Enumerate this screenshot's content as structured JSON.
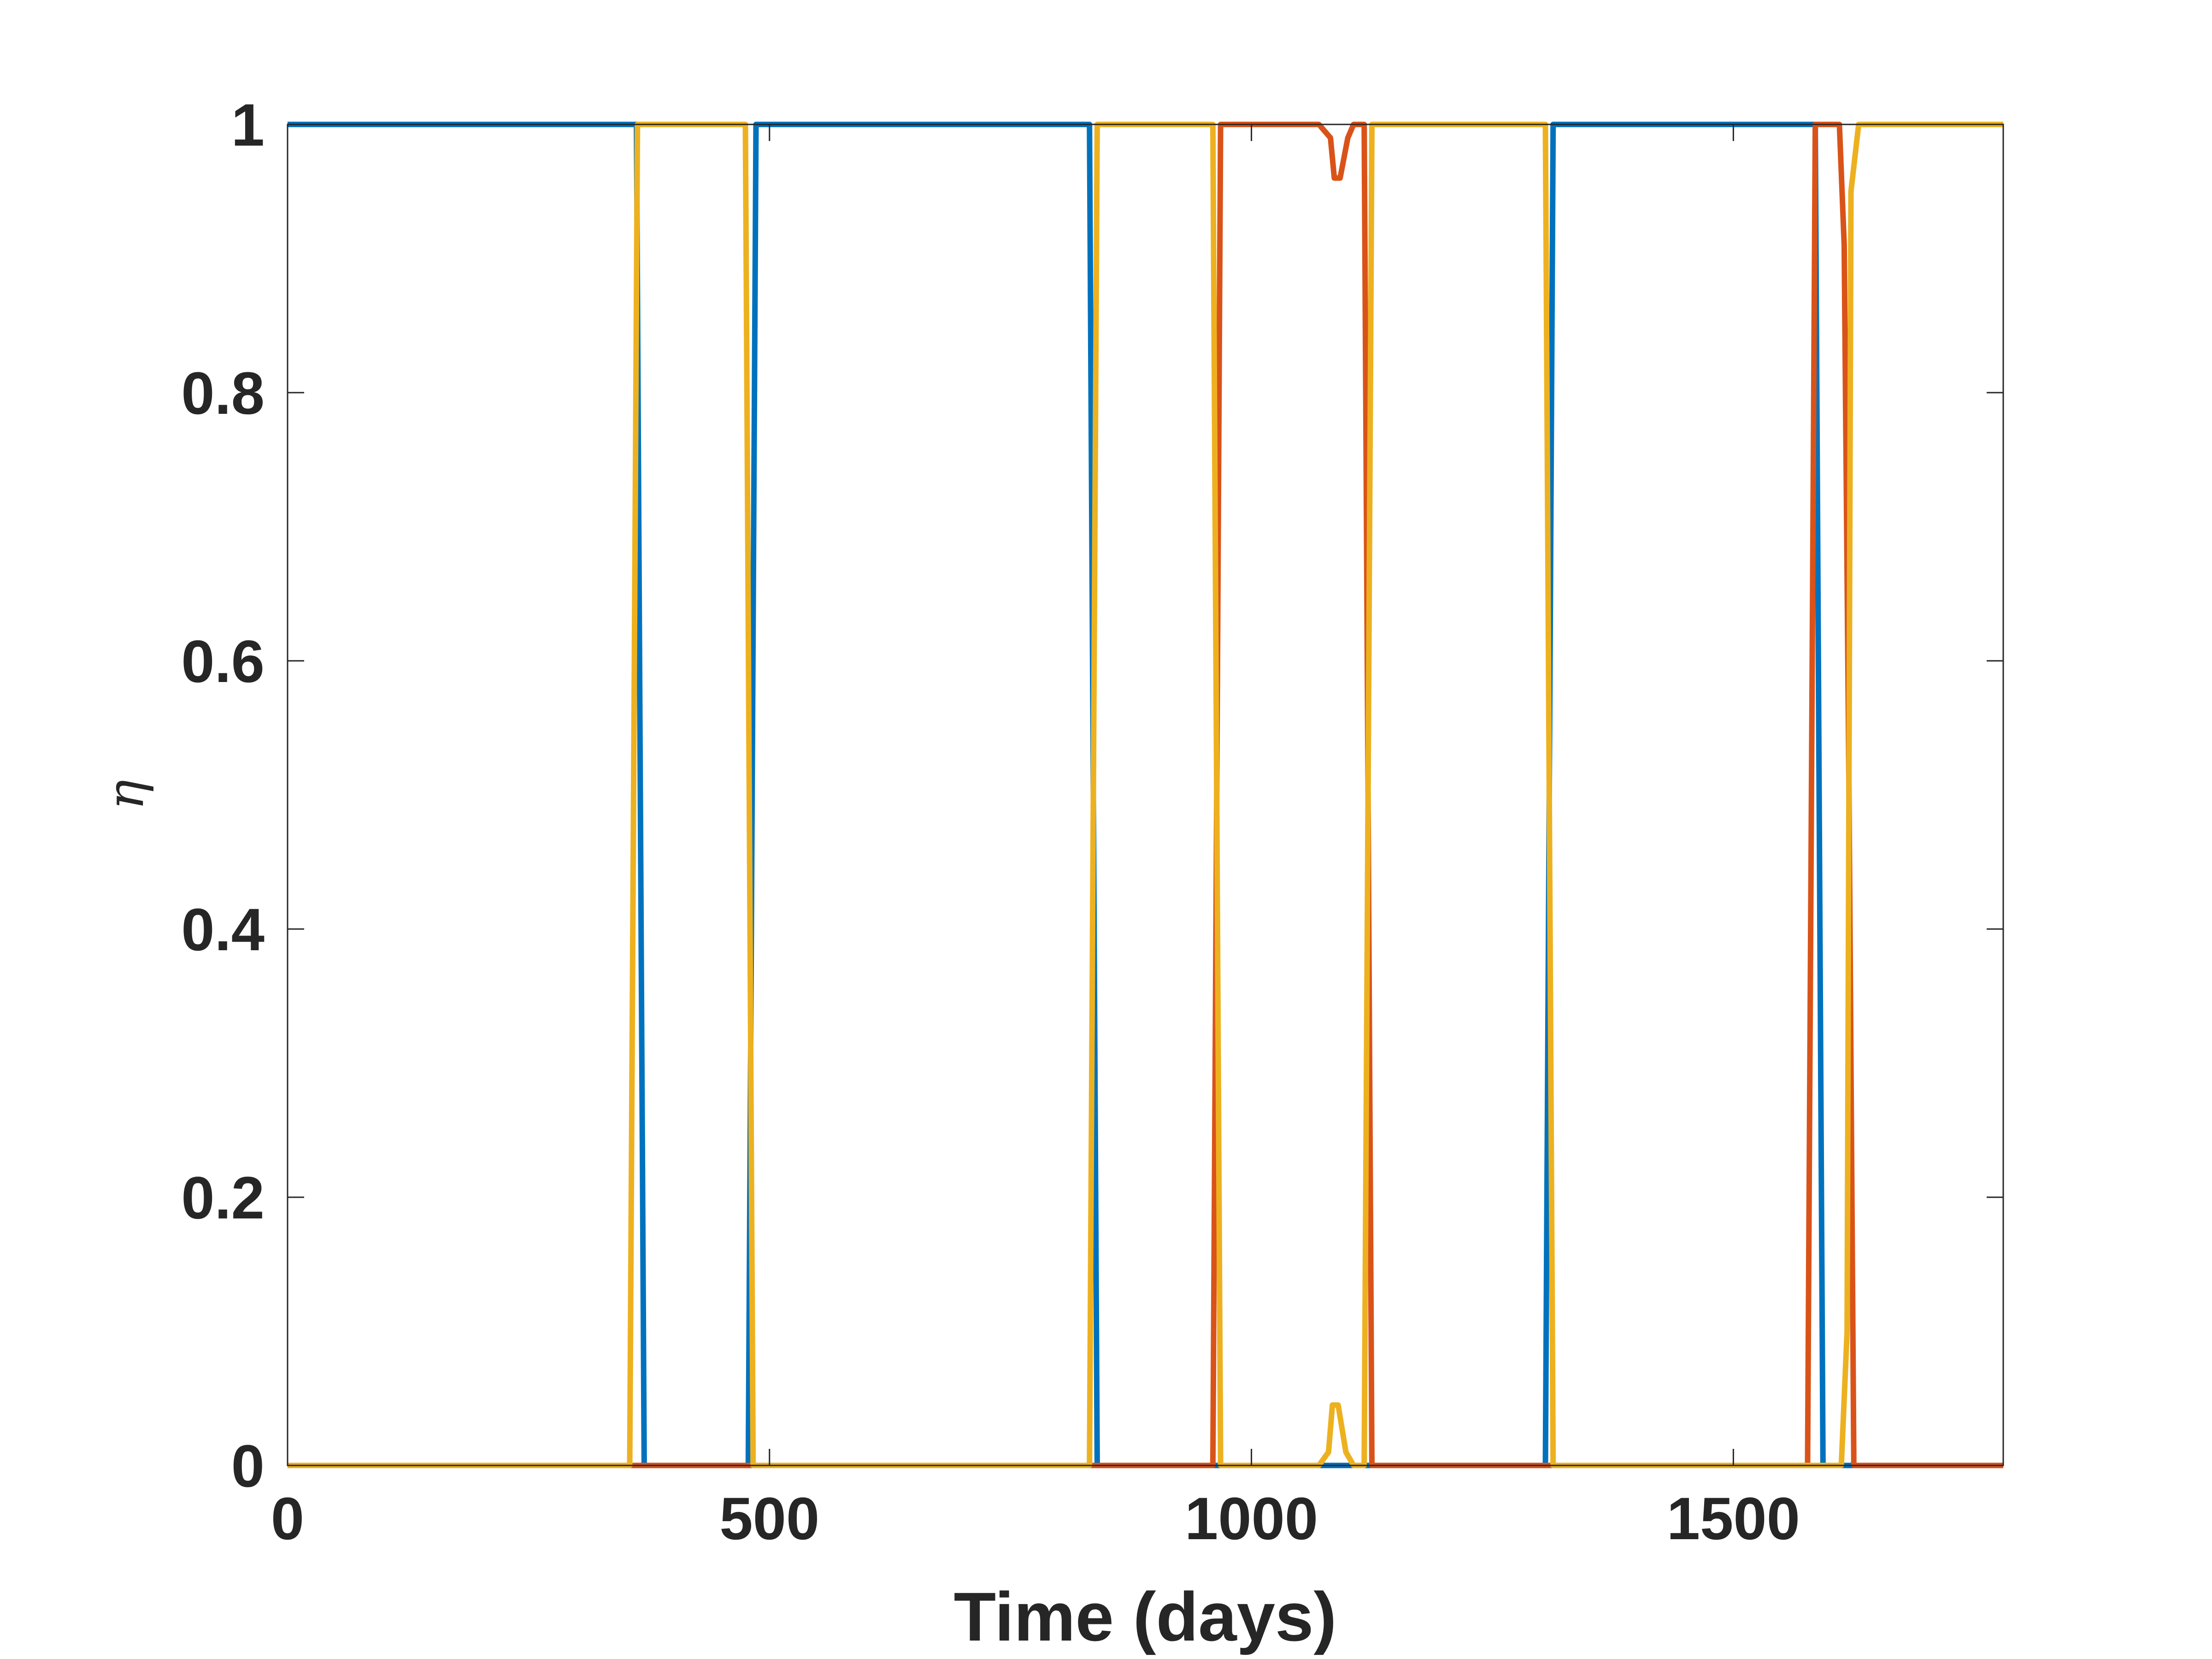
{
  "chart_data": {
    "type": "line",
    "xlabel": "Time (days)",
    "ylabel": "η",
    "xlim": [
      0,
      1780
    ],
    "ylim": [
      0,
      1
    ],
    "xticks": [
      0,
      500,
      1000,
      1500
    ],
    "xtick_labels": [
      "0",
      "500",
      "1000",
      "1500"
    ],
    "yticks": [
      0,
      0.2,
      0.4,
      0.6,
      0.8,
      1
    ],
    "ytick_labels": [
      "0",
      "0.2",
      "0.4",
      "0.6",
      "0.8",
      "1"
    ],
    "grid": false,
    "series": [
      {
        "color": "#0072BD",
        "x": [
          0,
          362,
          370,
          478,
          486,
          832,
          840,
          1305,
          1313,
          1585,
          1593,
          1625,
          1633,
          1780
        ],
        "y": [
          1,
          1,
          0,
          0,
          1,
          1,
          0,
          0,
          1,
          1,
          0,
          0,
          0,
          0
        ]
      },
      {
        "color": "#D95319",
        "x": [
          0,
          960,
          968,
          1070,
          1082,
          1086,
          1092,
          1100,
          1106,
          1117,
          1125,
          1577,
          1585,
          1610,
          1615,
          1620,
          1625,
          1780
        ],
        "y": [
          0,
          0,
          1,
          1,
          0.99,
          0.96,
          0.96,
          0.99,
          1,
          1,
          0,
          0,
          1,
          1,
          0.91,
          0.5,
          0,
          0
        ]
      },
      {
        "color": "#EDB120",
        "x": [
          0,
          355,
          363,
          475,
          483,
          832,
          840,
          960,
          968,
          1070,
          1080,
          1084,
          1090,
          1098,
          1106,
          1117,
          1125,
          1305,
          1313,
          1612,
          1618,
          1622,
          1630,
          1780
        ],
        "y": [
          0,
          0,
          1,
          1,
          0,
          0,
          1,
          1,
          0,
          0,
          0.01,
          0.045,
          0.045,
          0.01,
          0,
          0,
          1,
          1,
          0,
          0,
          0.1,
          0.95,
          1,
          1
        ]
      }
    ]
  }
}
